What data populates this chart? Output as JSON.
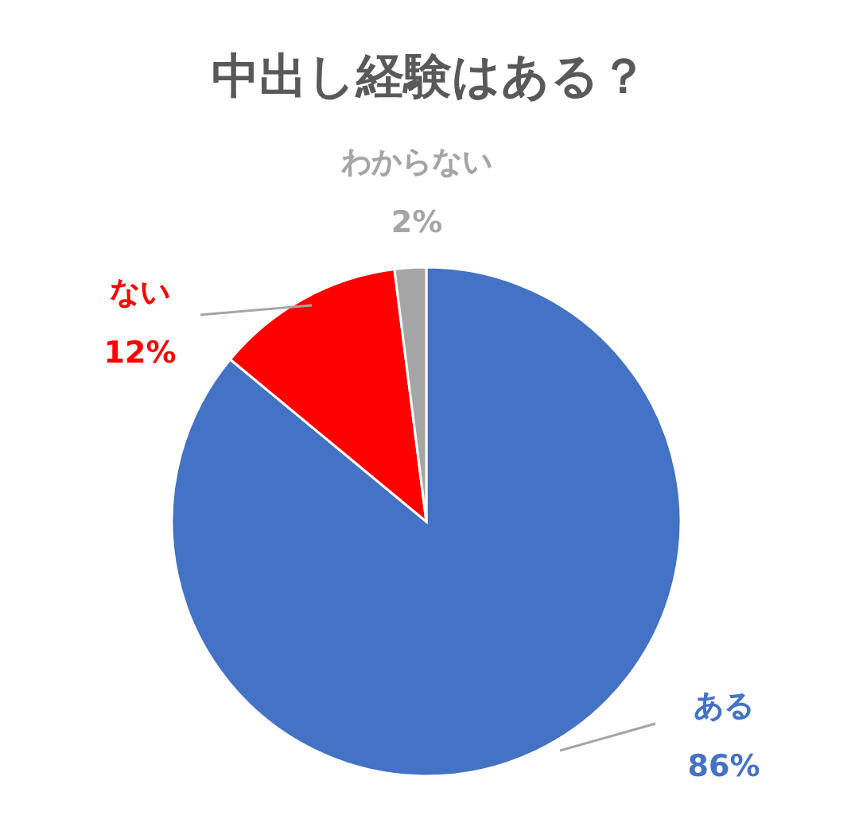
{
  "chart_data": {
    "type": "pie",
    "title": "中出し経験はある？",
    "categories": [
      "ある",
      "ない",
      "わからない"
    ],
    "values": [
      86,
      12,
      2
    ],
    "colors": [
      "#4472c4",
      "#ff0000",
      "#a5a5a5"
    ],
    "value_labels": [
      "86%",
      "12%",
      "2%"
    ],
    "legend": false
  }
}
